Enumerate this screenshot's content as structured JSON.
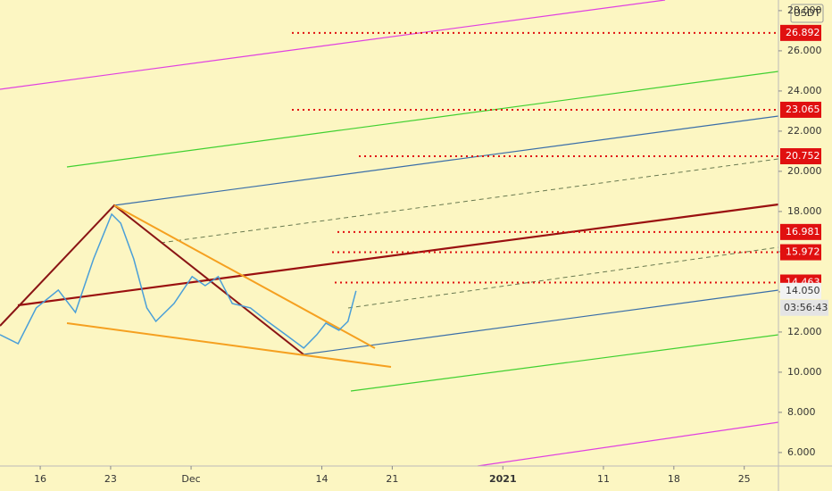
{
  "chart_data": {
    "type": "line",
    "currency": "USDT",
    "x": [
      -4.0,
      -2.2,
      -0.4,
      1.8,
      3.5,
      5.3,
      7.1,
      8.0,
      9.3,
      10.6,
      11.5,
      13.3,
      15.1,
      16.4,
      17.7,
      19.1,
      20.9,
      22.6,
      24.4,
      26.2,
      27.5,
      28.4,
      29.7,
      30.6,
      31.4
    ],
    "values": [
      11.87,
      11.42,
      13.2,
      14.09,
      12.98,
      15.64,
      17.87,
      17.42,
      15.64,
      13.2,
      12.53,
      13.42,
      14.76,
      14.31,
      14.76,
      13.42,
      13.2,
      12.53,
      11.87,
      11.2,
      11.87,
      12.44,
      12.09,
      12.53,
      14.05
    ],
    "color": "#4a9fd8",
    "xlim": [
      -4,
      73.4
    ],
    "ylim": [
      5.33,
      28.53
    ],
    "xticks": [
      {
        "value": 0,
        "label": "16"
      },
      {
        "value": 7,
        "label": "23"
      },
      {
        "value": 15,
        "label": "Dec"
      },
      {
        "value": 28,
        "label": "14"
      },
      {
        "value": 35,
        "label": "21"
      },
      {
        "value": 46,
        "label": "2021"
      },
      {
        "value": 56,
        "label": "11"
      },
      {
        "value": 63,
        "label": "18"
      },
      {
        "value": 70,
        "label": "25"
      }
    ],
    "yticks": [
      {
        "value": 6,
        "label": "6.000"
      },
      {
        "value": 8,
        "label": "8.000"
      },
      {
        "value": 10,
        "label": "10.000"
      },
      {
        "value": 12,
        "label": "12.000"
      },
      {
        "value": 14,
        "label": "14.000"
      },
      {
        "value": 16,
        "label": "16.000"
      },
      {
        "value": 18,
        "label": "18.000"
      },
      {
        "value": 20,
        "label": "20.000"
      },
      {
        "value": 22,
        "label": "22.000"
      },
      {
        "value": 24,
        "label": "24.000"
      },
      {
        "value": 26,
        "label": "26.000"
      },
      {
        "value": 28,
        "label": "28.000"
      }
    ],
    "levels": [
      26.892,
      23.065,
      20.752,
      16.981,
      15.972,
      14.463
    ],
    "level_color": "#e01010",
    "last_price": {
      "value": 14.05,
      "label": "14.050"
    },
    "countdown": "03:56:43"
  }
}
